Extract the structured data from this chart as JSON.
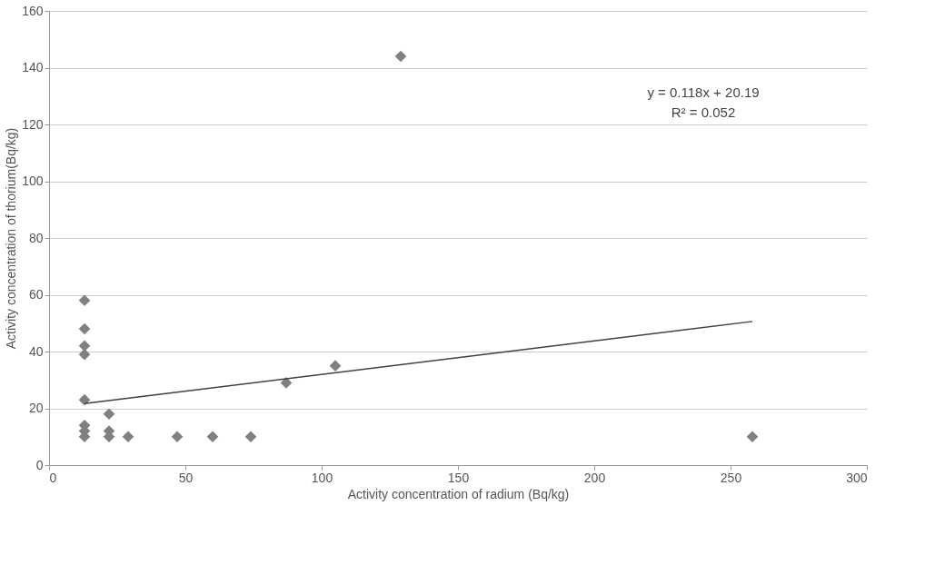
{
  "chart_data": {
    "type": "scatter",
    "xlabel": "Activity concentration of radium (Bq/kg)",
    "ylabel": "Activity concentration of thorium(Bq/kg)",
    "xlim": [
      0,
      300
    ],
    "xticks": [
      0,
      50,
      100,
      150,
      200,
      250,
      300
    ],
    "ylim": [
      0,
      160
    ],
    "yticks": [
      0,
      20,
      40,
      60,
      80,
      100,
      120,
      140,
      160
    ],
    "grid": "y",
    "legend": false,
    "annotations": [
      "y = 0.118x + 20.19",
      "R² = 0.052"
    ],
    "series": [
      {
        "color": "#808080",
        "marker": "diamond",
        "x": [
          13,
          13,
          13,
          13,
          13,
          13,
          13,
          13,
          22,
          22,
          22,
          29,
          47,
          60,
          74,
          87,
          105,
          129,
          258
        ],
        "values": [
          58,
          48,
          42,
          39,
          23,
          14,
          12,
          10,
          18,
          12,
          10,
          10,
          10,
          10,
          10,
          29,
          35,
          144,
          10
        ]
      },
      {
        "type": "line",
        "marker": "none",
        "color": "#404040",
        "x": [
          13,
          258
        ],
        "values": [
          21.7,
          50.6
        ]
      }
    ]
  }
}
